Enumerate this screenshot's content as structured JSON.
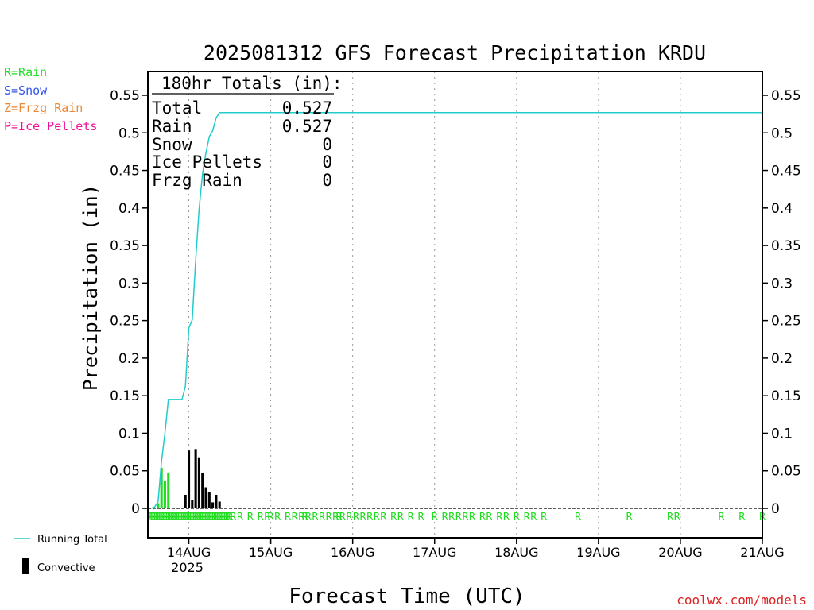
{
  "colors": {
    "rain": "#22dd22",
    "snow": "#3355ee",
    "frzg": "#ee8833",
    "ice": "#ee1199",
    "running_total": "#22cccc",
    "convective": "#000000",
    "grid": "#999999",
    "credit": "#dd2222"
  },
  "legend_types": [
    {
      "label": "R=Rain",
      "color": "#22dd22"
    },
    {
      "label": "S=Snow",
      "color": "#3355ee"
    },
    {
      "label": "Z=Frzg Rain",
      "color": "#ee8833"
    },
    {
      "label": "P=Ice Pellets",
      "color": "#ee1199"
    }
  ],
  "legend_bottom": {
    "running_total": "Running Total",
    "convective": "Convective"
  },
  "totals": {
    "header": "180hr Totals (in):",
    "rows": [
      {
        "label": "Total",
        "value": "0.527"
      },
      {
        "label": "Rain",
        "value": "0.527"
      },
      {
        "label": "Snow",
        "value": "0"
      },
      {
        "label": "Ice Pellets",
        "value": "0"
      },
      {
        "label": "Frzg Rain",
        "value": "0"
      }
    ]
  },
  "credit": "coolwx.com/models",
  "chart_data": {
    "type": "bar",
    "title": "2025081312 GFS Forecast Precipitation KRDU",
    "xlabel": "Forecast Time (UTC)",
    "ylabel": "Precipitation (in)",
    "ylim": [
      0,
      0.58
    ],
    "yticks": [
      0,
      0.05,
      0.1,
      0.15,
      0.2,
      0.25,
      0.3,
      0.35,
      0.4,
      0.45,
      0.5,
      0.55
    ],
    "ytick_labels": [
      "0",
      "0.05",
      "0.1",
      "0.15",
      "0.2",
      "0.25",
      "0.3",
      "0.35",
      "0.4",
      "0.45",
      "0.5",
      "0.55"
    ],
    "x_unit": "forecast hour",
    "xlim": [
      0,
      180
    ],
    "xticks": [
      {
        "hour": 12,
        "label": "14AUG",
        "sublabel": "2025"
      },
      {
        "hour": 36,
        "label": "15AUG"
      },
      {
        "hour": 60,
        "label": "16AUG"
      },
      {
        "hour": 84,
        "label": "17AUG"
      },
      {
        "hour": 108,
        "label": "18AUG"
      },
      {
        "hour": 132,
        "label": "19AUG"
      },
      {
        "hour": 156,
        "label": "20AUG"
      },
      {
        "hour": 180,
        "label": "21AUG"
      }
    ],
    "grid": "vertical dotted at day ticks",
    "series": [
      {
        "name": "Rain",
        "color": "#22dd22",
        "hours": [
          3,
          4,
          5,
          6
        ],
        "values": [
          0.007,
          0.054,
          0.037,
          0.047
        ]
      },
      {
        "name": "Convective",
        "color": "#000000",
        "hours": [
          11,
          12,
          13,
          14,
          15,
          16,
          17,
          18,
          19,
          20,
          21,
          22,
          23,
          24
        ],
        "values": [
          0.018,
          0.077,
          0.011,
          0.079,
          0.068,
          0.047,
          0.028,
          0.022,
          0.008,
          0.018,
          0.009,
          0.0,
          0.0,
          0.0
        ]
      },
      {
        "name": "Running Total",
        "color": "#22cccc",
        "type": "line",
        "points": [
          [
            1,
            0
          ],
          [
            2,
            0.002
          ],
          [
            3,
            0.009
          ],
          [
            4,
            0.063
          ],
          [
            5,
            0.1
          ],
          [
            6,
            0.145
          ],
          [
            10,
            0.145
          ],
          [
            11,
            0.163
          ],
          [
            12,
            0.24
          ],
          [
            13,
            0.251
          ],
          [
            14,
            0.33
          ],
          [
            15,
            0.398
          ],
          [
            16,
            0.445
          ],
          [
            17,
            0.473
          ],
          [
            18,
            0.495
          ],
          [
            19,
            0.503
          ],
          [
            20,
            0.52
          ],
          [
            21,
            0.527
          ],
          [
            180,
            0.527
          ]
        ]
      }
    ],
    "type_marks": {
      "symbol": "R",
      "hours": [
        0.5,
        1,
        1.5,
        2,
        2.5,
        3,
        3.5,
        4,
        4.5,
        5,
        5.5,
        6,
        6.5,
        7,
        7.5,
        8,
        8.5,
        9,
        9.5,
        10,
        10.5,
        11,
        11.5,
        12,
        12.5,
        13,
        13.5,
        14,
        14.5,
        15,
        15.5,
        16,
        16.5,
        17,
        17.5,
        18,
        18.5,
        19,
        19.5,
        20,
        20.5,
        21,
        21.5,
        22,
        22.5,
        23,
        23.5,
        24,
        25,
        27,
        30,
        33,
        35,
        36,
        38,
        41,
        43,
        45,
        46,
        47,
        49,
        51,
        53,
        55,
        56,
        57,
        59,
        61,
        63,
        65,
        67,
        69,
        72,
        74,
        77,
        80,
        84,
        87,
        89,
        91,
        93,
        95,
        98,
        100,
        103,
        105,
        108,
        111,
        113,
        116,
        126,
        141,
        153,
        155,
        168,
        174,
        180
      ]
    }
  }
}
